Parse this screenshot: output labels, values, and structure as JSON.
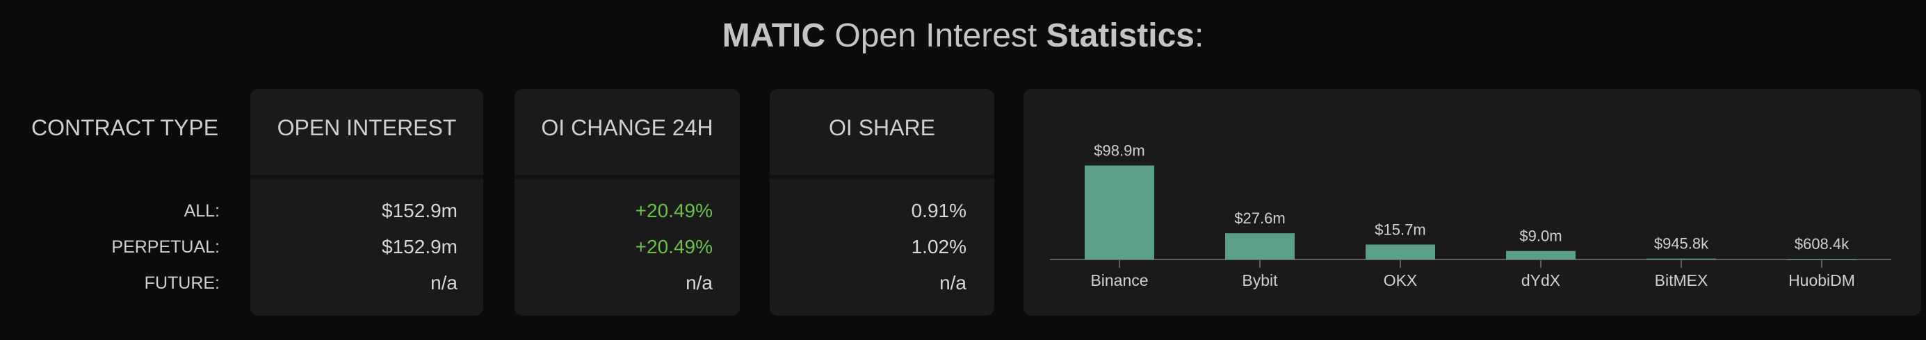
{
  "title": [
    "MATIC",
    "Open Interest",
    "Statistics",
    ":"
  ],
  "table": {
    "header": [
      "CONTRACT TYPE",
      "OPEN INTEREST",
      "OI CHANGE 24H",
      "OI SHARE"
    ],
    "rows": [
      [
        "ALL:",
        "$152.9m",
        "+20.49%",
        "0.91%"
      ],
      [
        "PERPETUAL:",
        "$152.9m",
        "+20.49%",
        "1.02%"
      ],
      [
        "FUTURE:",
        "n/a",
        "n/a",
        "n/a"
      ]
    ]
  },
  "chart_data": {
    "type": "bar",
    "color": "#5b9f86",
    "categories": [
      "Binance",
      "Bybit",
      "OKX",
      "dYdX",
      "BitMEX",
      "HuobiDM"
    ],
    "values": [
      98.9,
      27.6,
      15.7,
      9.0,
      0.9458,
      0.6084
    ],
    "value_labels": [
      "$98.9m",
      "$27.6m",
      "$15.7m",
      "$9.0m",
      "$945.8k",
      "$608.4k"
    ]
  }
}
